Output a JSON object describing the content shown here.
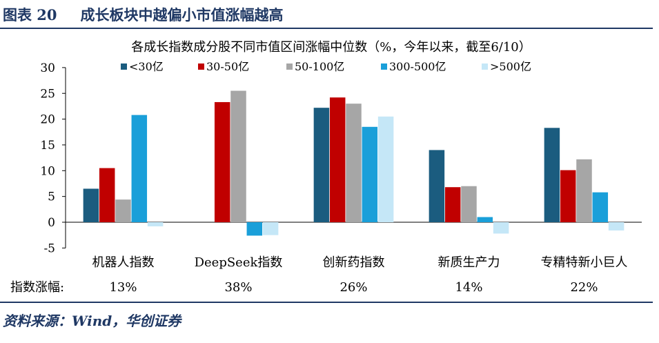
{
  "header": {
    "figure_label": "图表 20",
    "title": "成长板块中越偏小市值涨幅越高"
  },
  "footer": {
    "source": "资料来源：Wind，华创证券"
  },
  "chart_data": {
    "type": "bar",
    "title": "各成长指数成分股不同市值区间涨幅中位数（%，今年以来，截至6/10）",
    "ylim": [
      -5,
      30
    ],
    "yticks": [
      30,
      25,
      20,
      15,
      10,
      5,
      0,
      -5
    ],
    "categories": [
      "机器人指数",
      "DeepSeek指数",
      "创新药指数",
      "新质生产力",
      "专精特新小巨人"
    ],
    "series": [
      {
        "name": "<30亿",
        "color": "#1b5c7f",
        "values": [
          6.5,
          null,
          22.2,
          14.0,
          18.3
        ]
      },
      {
        "name": "30-50亿",
        "color": "#c00000",
        "values": [
          10.5,
          23.3,
          24.2,
          6.8,
          10.1
        ]
      },
      {
        "name": "50-100亿",
        "color": "#a6a6a6",
        "values": [
          4.4,
          25.5,
          23.0,
          7.0,
          12.2
        ]
      },
      {
        "name": "300-500亿",
        "color": "#1a9fd9",
        "values": [
          20.8,
          -2.6,
          18.5,
          1.0,
          5.8
        ]
      },
      {
        "name": ">500亿",
        "color": "#c5e7f7",
        "values": [
          -0.8,
          -2.5,
          20.5,
          -2.2,
          -1.6
        ]
      }
    ],
    "index_gain": {
      "label": "指数涨幅:",
      "values": [
        "13%",
        "38%",
        "26%",
        "14%",
        "22%"
      ]
    }
  }
}
